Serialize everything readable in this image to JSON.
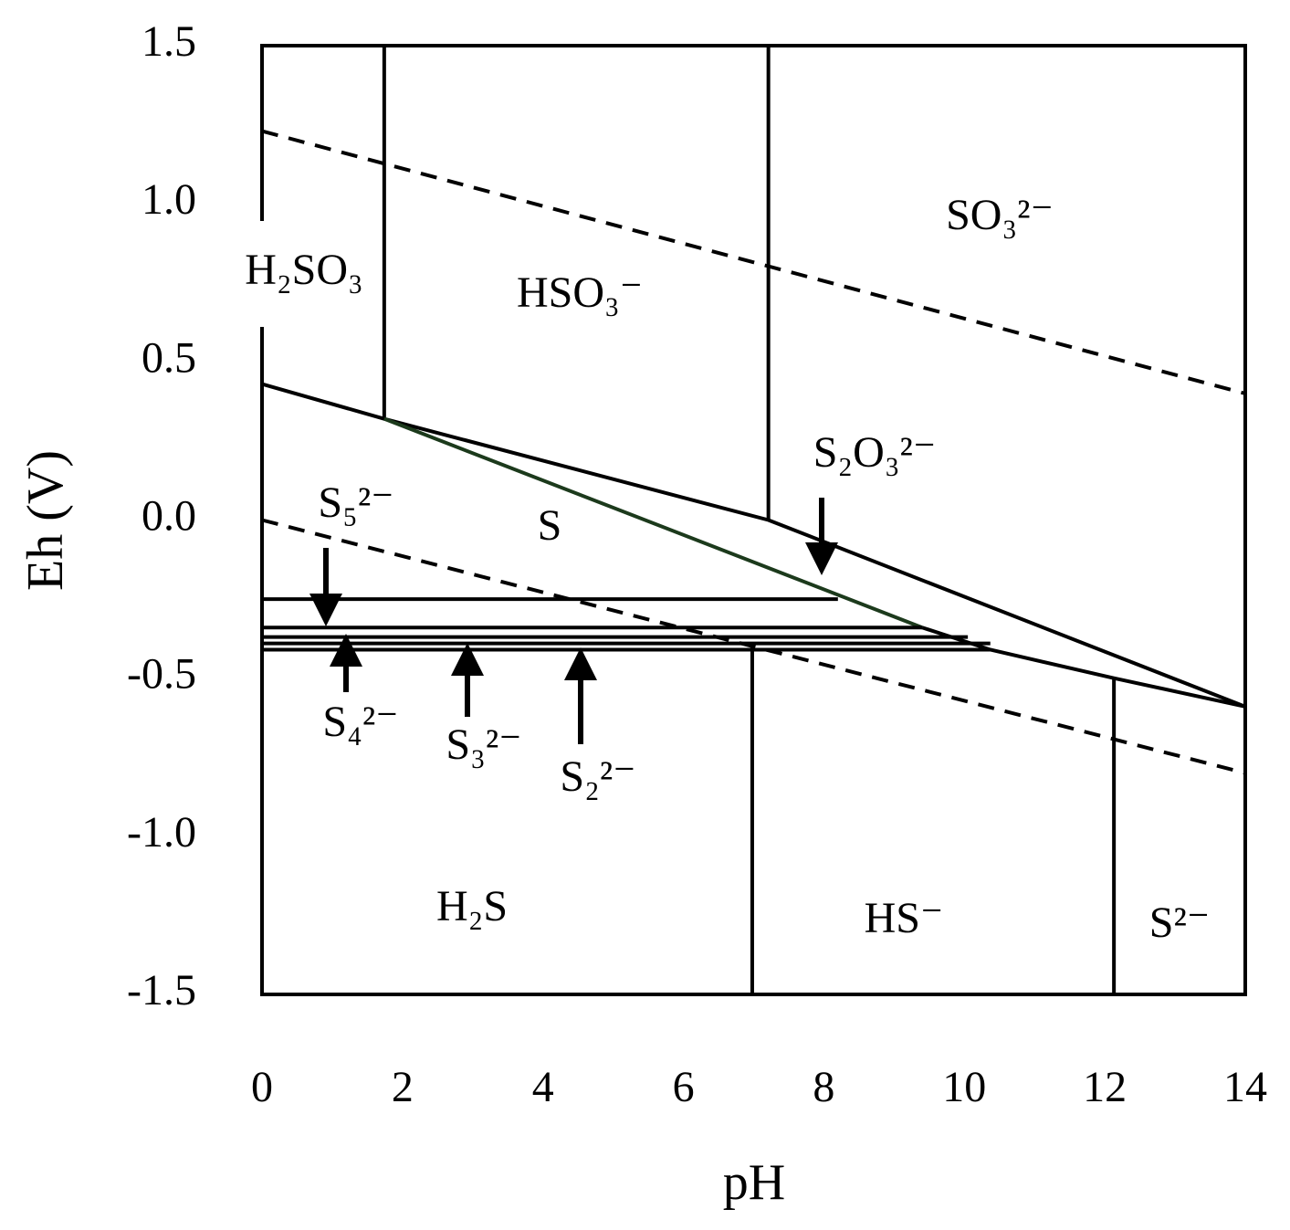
{
  "chart_data": {
    "type": "line",
    "x_label": "pH",
    "y_label": "Eh (V)",
    "xlim": [
      0,
      14
    ],
    "ylim": [
      -1.5,
      1.5
    ],
    "xticks": [
      0,
      2,
      4,
      6,
      8,
      10,
      12,
      14
    ],
    "yticks": [
      1.5,
      {
        "value": 1,
        "label": "1.0"
      },
      0.5,
      {
        "value": 0,
        "label": "0.0"
      },
      -0.5,
      {
        "value": -1,
        "label": "-1.0"
      },
      -1.5
    ],
    "series": [
      {
        "x": [
          0,
          14
        ],
        "values": [
          1.23,
          0.4
        ],
        "color": "#000000",
        "dashed": true
      },
      {
        "x": [
          0,
          14
        ],
        "values": [
          0,
          -0.8
        ],
        "color": "#000000",
        "dashed": true
      },
      {
        "x": [
          1.74,
          1.74
        ],
        "values": [
          0.32,
          1.5
        ],
        "color": "#000000",
        "dashed": false
      },
      {
        "x": [
          7.21,
          7.21
        ],
        "values": [
          0,
          1.5
        ],
        "color": "#000000",
        "dashed": false
      },
      {
        "x": [
          0,
          1.74,
          7.21,
          14
        ],
        "values": [
          0.43,
          0.32,
          0,
          -0.59
        ],
        "color": "#000000",
        "dashed": false
      },
      {
        "x": [
          1.74,
          9.4
        ],
        "values": [
          0.32,
          -0.34
        ],
        "color": "#1c3a1c",
        "dashed": false
      },
      {
        "x": [
          0,
          8.2
        ],
        "values": [
          -0.25,
          -0.25
        ],
        "color": "#000000",
        "dashed": false
      },
      {
        "x": [
          0,
          9.4
        ],
        "values": [
          -0.34,
          -0.34
        ],
        "color": "#000000",
        "dashed": false
      },
      {
        "x": [
          0,
          10.05
        ],
        "values": [
          -0.37,
          -0.37
        ],
        "color": "#000000",
        "dashed": false
      },
      {
        "x": [
          0,
          10.37
        ],
        "values": [
          -0.39,
          -0.39
        ],
        "color": "#000000",
        "dashed": false
      },
      {
        "x": [
          0,
          10.37
        ],
        "values": [
          -0.41,
          -0.41
        ],
        "color": "#000000",
        "dashed": false
      },
      {
        "x": [
          9.4,
          10.37,
          12.13,
          14
        ],
        "values": [
          -0.34,
          -0.41,
          -0.5,
          -0.59
        ],
        "color": "#000000",
        "dashed": false
      },
      {
        "x": [
          6.98,
          6.98
        ],
        "values": [
          -1.5,
          -0.4
        ],
        "color": "#000000",
        "dashed": false
      },
      {
        "x": [
          12.13,
          12.13
        ],
        "values": [
          -1.5,
          -0.5
        ],
        "color": "#000000",
        "dashed": false
      }
    ],
    "annotations": [
      "H₂SO₃",
      "SO₃²⁻",
      "HSO₃⁻",
      "S₂O₃²⁻",
      "S",
      "S₅²⁻",
      "S₄²⁻",
      "S₃²⁻",
      "S₂²⁻",
      "H₂S",
      "HS⁻",
      "S²⁻"
    ]
  }
}
